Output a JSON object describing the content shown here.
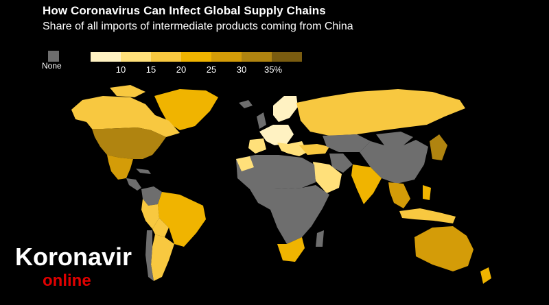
{
  "header": {
    "title": "How Coronavirus Can Infect Global Supply Chains",
    "subtitle": "Share of all imports of intermediate products coming from China"
  },
  "legend": {
    "none_label": "None",
    "none_color": "#6e6e6e",
    "bins": [
      "#fff2c2",
      "#ffe07a",
      "#f8c840",
      "#f0b400",
      "#d49c08",
      "#b08410",
      "#7a5c10"
    ],
    "ticks": [
      "10",
      "15",
      "20",
      "25",
      "30",
      "35%"
    ]
  },
  "watermark": {
    "main": "Koronavir",
    "sub": "online",
    "sub_color": "#e00000"
  }
}
